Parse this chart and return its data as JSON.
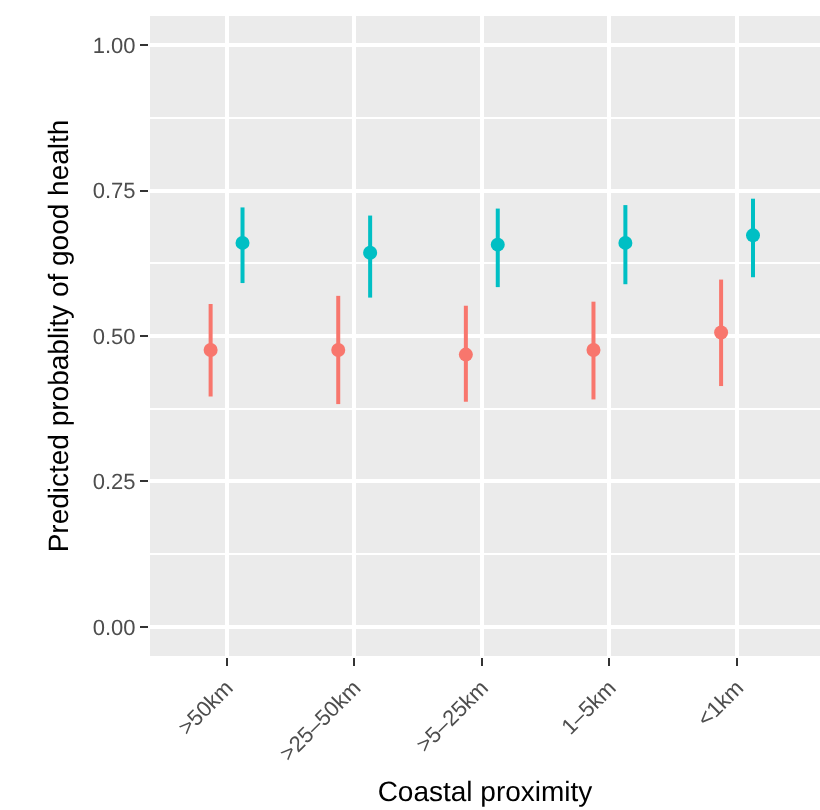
{
  "chart_data": {
    "type": "scatter",
    "xlabel": "Coastal proximity",
    "ylabel": "Predicted probablity of good health",
    "categories": [
      ">50km",
      ">25–50km",
      ">5–25km",
      "1–5km",
      "<1km"
    ],
    "series": [
      {
        "color": "#f8766d",
        "values": [
          0.476,
          0.476,
          0.468,
          0.476,
          0.506
        ],
        "errors": [
          [
            0.396,
            0.555
          ],
          [
            0.383,
            0.569
          ],
          [
            0.387,
            0.552
          ],
          [
            0.391,
            0.559
          ],
          [
            0.414,
            0.597
          ]
        ]
      },
      {
        "color": "#00bfc4",
        "values": [
          0.66,
          0.643,
          0.657,
          0.66,
          0.673
        ],
        "errors": [
          [
            0.591,
            0.721
          ],
          [
            0.566,
            0.707
          ],
          [
            0.584,
            0.719
          ],
          [
            0.589,
            0.725
          ],
          [
            0.601,
            0.736
          ]
        ]
      }
    ],
    "ylim": [
      -0.05,
      1.05
    ],
    "yticks": [
      {
        "value": 0,
        "label": "0.00"
      },
      {
        "value": 0.25,
        "label": "0.25"
      },
      {
        "value": 0.5,
        "label": "0.50"
      },
      {
        "value": 0.75,
        "label": "0.75"
      },
      {
        "value": 1,
        "label": "1.00"
      }
    ],
    "grid": true,
    "marker": "circle"
  }
}
